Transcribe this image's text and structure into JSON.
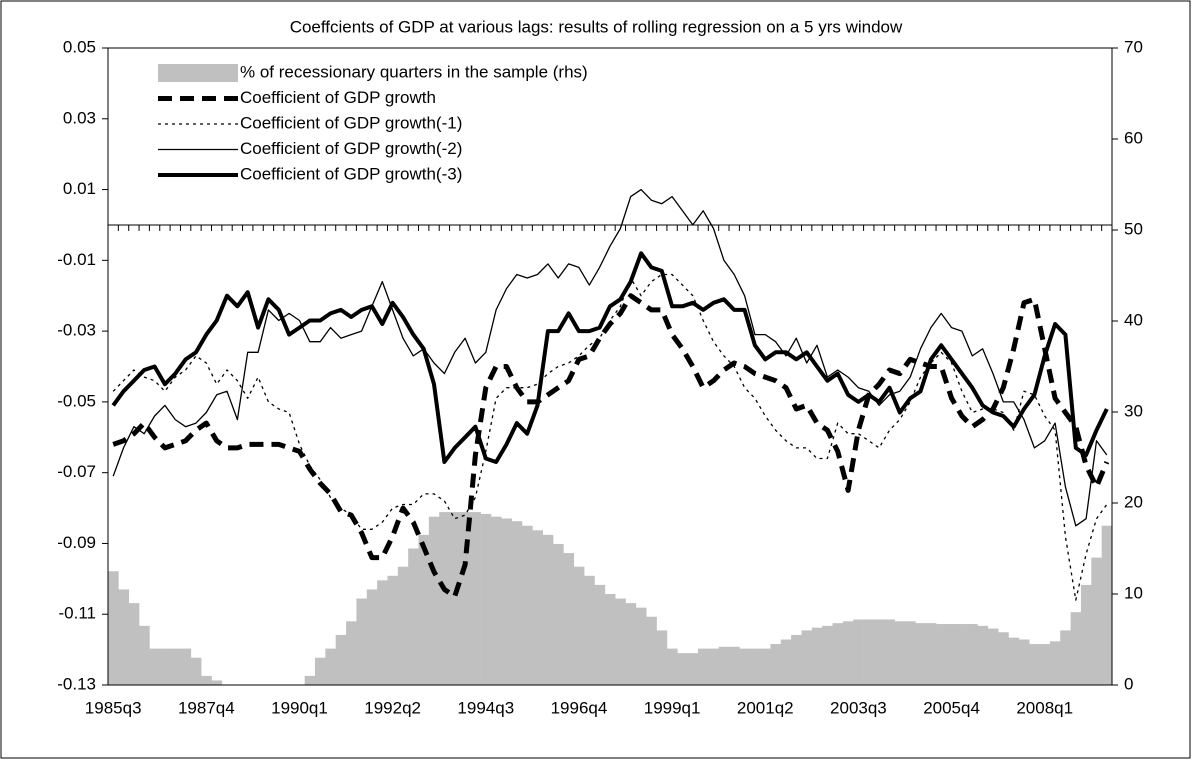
{
  "chart_data": {
    "type": "combo",
    "title": "Coeffcients of GDP at various lags: results of rolling regression on a 5 yrs window",
    "categories": [
      "1985q3",
      null,
      null,
      null,
      null,
      null,
      null,
      null,
      null,
      "1987q4",
      null,
      null,
      null,
      null,
      null,
      null,
      null,
      null,
      "1990q1",
      null,
      null,
      null,
      null,
      null,
      null,
      null,
      null,
      "1992q2",
      null,
      null,
      null,
      null,
      null,
      null,
      null,
      null,
      "1994q3",
      null,
      null,
      null,
      null,
      null,
      null,
      null,
      null,
      "1996q4",
      null,
      null,
      null,
      null,
      null,
      null,
      null,
      null,
      "1999q1",
      null,
      null,
      null,
      null,
      null,
      null,
      null,
      null,
      "2001q2",
      null,
      null,
      null,
      null,
      null,
      null,
      null,
      null,
      "2003q3",
      null,
      null,
      null,
      null,
      null,
      null,
      null,
      null,
      "2005q4",
      null,
      null,
      null,
      null,
      null,
      null,
      null,
      null,
      "2008q1",
      null,
      null,
      null,
      null,
      null,
      null
    ],
    "ylim": [
      -0.13,
      0.05
    ],
    "yticks": [
      -0.13,
      -0.11,
      -0.09,
      -0.07,
      -0.05,
      -0.03,
      -0.01,
      0.01,
      0.03,
      0.05
    ],
    "y2lim": [
      0,
      70
    ],
    "y2ticks": [
      0,
      10,
      20,
      30,
      40,
      50,
      60,
      70
    ],
    "legend": "top-left",
    "series": [
      {
        "name": "% of recessionary quarters in the sample (rhs)",
        "type": "bar",
        "axis": "y2",
        "color": "#c0c0c0",
        "values": [
          12.5,
          10.5,
          9,
          6.5,
          4,
          4,
          4,
          4,
          3,
          1,
          0.5,
          0,
          0,
          0,
          0,
          0,
          0,
          0,
          0,
          1,
          3,
          4,
          5.5,
          7,
          9.5,
          10.5,
          11.5,
          12,
          13,
          15,
          16.5,
          18.5,
          19,
          19,
          19,
          19,
          18.8,
          18.5,
          18.3,
          18,
          17.5,
          17,
          16.5,
          15.5,
          14.5,
          13,
          12,
          11,
          10,
          9.5,
          9,
          8.5,
          7.5,
          6,
          4,
          3.5,
          3.5,
          4,
          4,
          4.2,
          4.2,
          4,
          4,
          4,
          4.5,
          5,
          5.5,
          6,
          6.3,
          6.5,
          6.8,
          7,
          7.2,
          7.2,
          7.2,
          7.2,
          7,
          7,
          6.8,
          6.8,
          6.7,
          6.7,
          6.7,
          6.7,
          6.5,
          6.2,
          5.8,
          5.2,
          5,
          4.5,
          4.5,
          4.8,
          6,
          8,
          11,
          14,
          17.5
        ]
      },
      {
        "name": "Coefficient of GDP growth",
        "type": "line",
        "color": "#000000",
        "style": "dashed",
        "line_width": 5,
        "values": [
          -0.062,
          -0.061,
          -0.059,
          -0.056,
          -0.06,
          -0.063,
          -0.062,
          -0.061,
          -0.058,
          -0.056,
          -0.061,
          -0.063,
          -0.063,
          -0.062,
          -0.062,
          -0.062,
          -0.062,
          -0.063,
          -0.064,
          -0.069,
          -0.073,
          -0.076,
          -0.081,
          -0.082,
          -0.087,
          -0.094,
          -0.094,
          -0.088,
          -0.08,
          -0.084,
          -0.091,
          -0.098,
          -0.103,
          -0.105,
          -0.096,
          -0.065,
          -0.046,
          -0.04,
          -0.04,
          -0.046,
          -0.05,
          -0.05,
          -0.048,
          -0.046,
          -0.044,
          -0.038,
          -0.037,
          -0.032,
          -0.028,
          -0.025,
          -0.02,
          -0.022,
          -0.024,
          -0.024,
          -0.031,
          -0.035,
          -0.04,
          -0.046,
          -0.044,
          -0.041,
          -0.039,
          -0.04,
          -0.042,
          -0.043,
          -0.044,
          -0.046,
          -0.052,
          -0.051,
          -0.056,
          -0.058,
          -0.064,
          -0.075,
          -0.058,
          -0.048,
          -0.045,
          -0.041,
          -0.042,
          -0.038,
          -0.039,
          -0.04,
          -0.04,
          -0.049,
          -0.054,
          -0.057,
          -0.055,
          -0.052,
          -0.046,
          -0.035,
          -0.022,
          -0.021,
          -0.035,
          -0.049,
          -0.053,
          -0.057,
          -0.068,
          -0.074,
          -0.067
        ]
      },
      {
        "name": "Coefficient of GDP growth(-1)",
        "type": "line",
        "color": "#000000",
        "style": "dotted",
        "line_width": 1.3,
        "values": [
          -0.047,
          -0.044,
          -0.041,
          -0.043,
          -0.044,
          -0.047,
          -0.043,
          -0.041,
          -0.037,
          -0.039,
          -0.045,
          -0.041,
          -0.044,
          -0.049,
          -0.043,
          -0.05,
          -0.052,
          -0.053,
          -0.062,
          -0.068,
          -0.072,
          -0.077,
          -0.08,
          -0.082,
          -0.086,
          -0.086,
          -0.084,
          -0.08,
          -0.079,
          -0.079,
          -0.076,
          -0.076,
          -0.078,
          -0.083,
          -0.082,
          -0.077,
          -0.064,
          -0.049,
          -0.046,
          -0.046,
          -0.046,
          -0.045,
          -0.042,
          -0.04,
          -0.039,
          -0.037,
          -0.034,
          -0.032,
          -0.027,
          -0.023,
          -0.015,
          -0.02,
          -0.016,
          -0.014,
          -0.014,
          -0.017,
          -0.02,
          -0.027,
          -0.033,
          -0.037,
          -0.04,
          -0.046,
          -0.049,
          -0.054,
          -0.058,
          -0.061,
          -0.063,
          -0.063,
          -0.066,
          -0.066,
          -0.056,
          -0.059,
          -0.059,
          -0.061,
          -0.063,
          -0.058,
          -0.055,
          -0.05,
          -0.043,
          -0.039,
          -0.036,
          -0.039,
          -0.047,
          -0.053,
          -0.052,
          -0.052,
          -0.053,
          -0.058,
          -0.047,
          -0.048,
          -0.054,
          -0.058,
          -0.088,
          -0.106,
          -0.093,
          -0.083,
          -0.079
        ]
      },
      {
        "name": "Coefficient of GDP growth(-2)",
        "type": "line",
        "color": "#000000",
        "style": "solid",
        "line_width": 1.3,
        "values": [
          -0.071,
          -0.063,
          -0.057,
          -0.059,
          -0.054,
          -0.051,
          -0.055,
          -0.057,
          -0.056,
          -0.053,
          -0.048,
          -0.047,
          -0.055,
          -0.036,
          -0.036,
          -0.024,
          -0.027,
          -0.025,
          -0.027,
          -0.033,
          -0.033,
          -0.029,
          -0.032,
          -0.031,
          -0.03,
          -0.023,
          -0.016,
          -0.024,
          -0.032,
          -0.037,
          -0.035,
          -0.039,
          -0.042,
          -0.036,
          -0.032,
          -0.039,
          -0.036,
          -0.024,
          -0.018,
          -0.014,
          -0.015,
          -0.014,
          -0.011,
          -0.015,
          -0.011,
          -0.012,
          -0.017,
          -0.012,
          -0.006,
          -0.001,
          0.008,
          0.01,
          0.007,
          0.006,
          0.008,
          0.004,
          0,
          0.004,
          -0.001,
          -0.01,
          -0.014,
          -0.02,
          -0.031,
          -0.031,
          -0.033,
          -0.037,
          -0.032,
          -0.039,
          -0.034,
          -0.043,
          -0.041,
          -0.043,
          -0.046,
          -0.047,
          -0.051,
          -0.048,
          -0.047,
          -0.043,
          -0.035,
          -0.029,
          -0.025,
          -0.029,
          -0.03,
          -0.037,
          -0.035,
          -0.042,
          -0.05,
          -0.05,
          -0.055,
          -0.063,
          -0.061,
          -0.056,
          -0.074,
          -0.085,
          -0.083,
          -0.061,
          -0.065
        ]
      },
      {
        "name": "Coefficient of GDP growth(-3)",
        "type": "line",
        "color": "#000000",
        "style": "solid",
        "line_width": 4,
        "values": [
          -0.051,
          -0.047,
          -0.044,
          -0.041,
          -0.04,
          -0.045,
          -0.042,
          -0.038,
          -0.036,
          -0.031,
          -0.027,
          -0.02,
          -0.023,
          -0.019,
          -0.029,
          -0.021,
          -0.024,
          -0.031,
          -0.029,
          -0.027,
          -0.027,
          -0.025,
          -0.024,
          -0.026,
          -0.024,
          -0.023,
          -0.028,
          -0.022,
          -0.026,
          -0.031,
          -0.035,
          -0.045,
          -0.067,
          -0.063,
          -0.06,
          -0.057,
          -0.066,
          -0.067,
          -0.062,
          -0.056,
          -0.059,
          -0.051,
          -0.03,
          -0.03,
          -0.025,
          -0.03,
          -0.03,
          -0.029,
          -0.023,
          -0.021,
          -0.016,
          -0.008,
          -0.012,
          -0.013,
          -0.023,
          -0.023,
          -0.022,
          -0.024,
          -0.022,
          -0.021,
          -0.024,
          -0.024,
          -0.034,
          -0.038,
          -0.036,
          -0.036,
          -0.038,
          -0.036,
          -0.04,
          -0.044,
          -0.042,
          -0.048,
          -0.05,
          -0.048,
          -0.05,
          -0.046,
          -0.053,
          -0.049,
          -0.047,
          -0.038,
          -0.034,
          -0.038,
          -0.042,
          -0.046,
          -0.051,
          -0.053,
          -0.054,
          -0.057,
          -0.052,
          -0.048,
          -0.037,
          -0.028,
          -0.031,
          -0.063,
          -0.065,
          -0.058,
          -0.052
        ]
      }
    ]
  }
}
